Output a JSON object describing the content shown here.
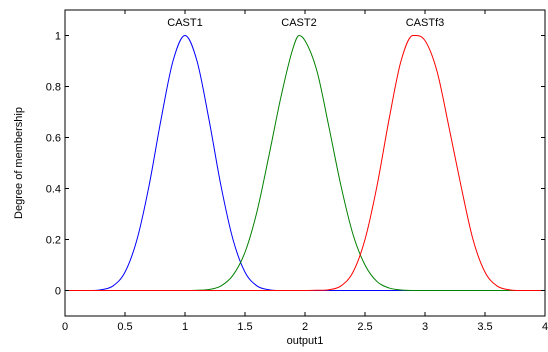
{
  "chart_data": {
    "type": "line",
    "title": "",
    "xlabel": "output1",
    "ylabel": "Degree of membership",
    "xlim": [
      0,
      4
    ],
    "ylim": [
      -0.1,
      1.1
    ],
    "xticks": [
      0,
      0.5,
      1,
      1.5,
      2,
      2.5,
      3,
      3.5,
      4
    ],
    "xtick_labels": [
      "0",
      "0.5",
      "1",
      "1.5",
      "2",
      "2.5",
      "3",
      "3.5",
      "4"
    ],
    "yticks": [
      0,
      0.2,
      0.4,
      0.6,
      0.8,
      1
    ],
    "ytick_labels": [
      "0",
      "0.2",
      "0.4",
      "0.6",
      "0.8",
      "1"
    ],
    "grid": false,
    "legend": "none",
    "series": [
      {
        "name": "CAST1",
        "color": "#0000ff",
        "x": [
          0,
          0.1,
          0.2,
          0.3,
          0.4,
          0.5,
          0.6,
          0.7,
          0.8,
          0.9,
          1,
          1.1,
          1.2,
          1.3,
          1.4,
          1.5,
          1.6,
          1.7,
          1.8,
          1.9,
          2,
          2.5,
          3,
          3.5,
          4
        ],
        "values": [
          0,
          0,
          0,
          0.003,
          0.018,
          0.072,
          0.2,
          0.41,
          0.67,
          0.9,
          1,
          0.9,
          0.67,
          0.41,
          0.2,
          0.072,
          0.018,
          0.003,
          0,
          0,
          0,
          0,
          0,
          0,
          0
        ]
      },
      {
        "name": "CAST2",
        "color": "#008000",
        "x": [
          0,
          0.5,
          1,
          1.1,
          1.2,
          1.3,
          1.4,
          1.5,
          1.6,
          1.7,
          1.8,
          1.9,
          1.95,
          2,
          2.1,
          2.2,
          2.3,
          2.4,
          2.5,
          2.6,
          2.7,
          2.8,
          3,
          3.5,
          4
        ],
        "values": [
          0,
          0,
          0,
          0.001,
          0.004,
          0.018,
          0.06,
          0.15,
          0.31,
          0.53,
          0.76,
          0.95,
          1,
          0.98,
          0.86,
          0.64,
          0.41,
          0.22,
          0.1,
          0.035,
          0.01,
          0.002,
          0,
          0,
          0
        ]
      },
      {
        "name": "CASTf3",
        "color": "#ff0000",
        "x": [
          0,
          0.5,
          1,
          1.5,
          2,
          2.1,
          2.2,
          2.3,
          2.4,
          2.5,
          2.6,
          2.7,
          2.8,
          2.9,
          3,
          3.1,
          3.2,
          3.3,
          3.4,
          3.5,
          3.6,
          3.7,
          3.8,
          3.9,
          4
        ],
        "values": [
          0,
          0,
          0,
          0,
          0,
          0.001,
          0.003,
          0.018,
          0.072,
          0.2,
          0.41,
          0.67,
          0.9,
          1,
          0.98,
          0.86,
          0.64,
          0.41,
          0.2,
          0.072,
          0.018,
          0.003,
          0,
          0,
          0
        ]
      }
    ],
    "annotations": [
      {
        "text": "CAST1",
        "x": 1,
        "y": 1.07
      },
      {
        "text": "CAST2",
        "x": 1.95,
        "y": 1.07
      },
      {
        "text": "CASTf3",
        "x": 3,
        "y": 1.07
      }
    ]
  }
}
